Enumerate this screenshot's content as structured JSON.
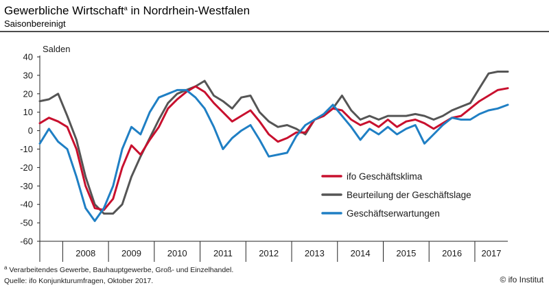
{
  "header": {
    "title": "Gewerbliche Wirtschaft",
    "title_mark": "a",
    "title_rest": " in Nordrhein-Westfalen",
    "subtitle": "Saisonbereinigt"
  },
  "chart_data": {
    "type": "line",
    "ylabel": "Salden",
    "ylim": [
      -60,
      40
    ],
    "ytick_values": [
      40,
      30,
      20,
      10,
      0,
      -10,
      -20,
      -30,
      -40,
      -50,
      -60
    ],
    "xlim": [
      2007.5,
      2017.72
    ],
    "year_labels": [
      "2008",
      "2009",
      "2010",
      "2011",
      "2012",
      "2013",
      "2014",
      "2015",
      "2016",
      "2017"
    ],
    "grid": false,
    "legend_position": "lower-right",
    "series": [
      {
        "name": "ifo Geschäftsklima",
        "color": "#c8102e",
        "x": [
          2007.5,
          2007.7,
          2007.9,
          2008.1,
          2008.3,
          2008.5,
          2008.7,
          2008.9,
          2009.1,
          2009.3,
          2009.5,
          2009.7,
          2009.9,
          2010.1,
          2010.3,
          2010.5,
          2010.7,
          2010.9,
          2011.1,
          2011.3,
          2011.5,
          2011.7,
          2011.9,
          2012.1,
          2012.3,
          2012.5,
          2012.7,
          2012.9,
          2013.1,
          2013.3,
          2013.5,
          2013.7,
          2013.9,
          2014.1,
          2014.3,
          2014.5,
          2014.7,
          2014.9,
          2015.1,
          2015.3,
          2015.5,
          2015.7,
          2015.9,
          2016.1,
          2016.3,
          2016.5,
          2016.7,
          2016.9,
          2017.1,
          2017.3,
          2017.5,
          2017.72
        ],
        "values": [
          4,
          7,
          5,
          2,
          -10,
          -30,
          -42,
          -43,
          -37,
          -20,
          -8,
          -13,
          -5,
          2,
          12,
          17,
          21,
          24,
          21,
          15,
          10,
          5,
          8,
          11,
          5,
          -2,
          -6,
          -4,
          -1,
          -1,
          6,
          8,
          12,
          11,
          6,
          3,
          5,
          2,
          6,
          2,
          5,
          6,
          4,
          1,
          4,
          7,
          8,
          12,
          16,
          19,
          22,
          23
        ]
      },
      {
        "name": "Beurteilung der Geschäftslage",
        "color": "#555555",
        "x": [
          2007.5,
          2007.7,
          2007.9,
          2008.1,
          2008.3,
          2008.5,
          2008.7,
          2008.9,
          2009.1,
          2009.3,
          2009.5,
          2009.7,
          2009.9,
          2010.1,
          2010.3,
          2010.5,
          2010.7,
          2010.9,
          2011.1,
          2011.3,
          2011.5,
          2011.7,
          2011.9,
          2012.1,
          2012.3,
          2012.5,
          2012.7,
          2012.9,
          2013.1,
          2013.3,
          2013.5,
          2013.7,
          2013.9,
          2014.1,
          2014.3,
          2014.5,
          2014.7,
          2014.9,
          2015.1,
          2015.3,
          2015.5,
          2015.7,
          2015.9,
          2016.1,
          2016.3,
          2016.5,
          2016.7,
          2016.9,
          2017.1,
          2017.3,
          2017.5,
          2017.72
        ],
        "values": [
          16,
          17,
          20,
          8,
          -5,
          -25,
          -40,
          -45,
          -45,
          -40,
          -25,
          -14,
          -4,
          6,
          15,
          20,
          22,
          24,
          27,
          19,
          16,
          12,
          18,
          19,
          10,
          5,
          2,
          3,
          1,
          -2,
          6,
          8,
          12,
          19,
          11,
          6,
          8,
          6,
          8,
          8,
          8,
          9,
          8,
          6,
          8,
          11,
          13,
          15,
          23,
          31,
          32,
          32
        ]
      },
      {
        "name": "Geschäftserwartungen",
        "color": "#1f7fc4",
        "x": [
          2007.5,
          2007.7,
          2007.9,
          2008.1,
          2008.3,
          2008.5,
          2008.7,
          2008.9,
          2009.1,
          2009.3,
          2009.5,
          2009.7,
          2009.9,
          2010.1,
          2010.3,
          2010.5,
          2010.7,
          2010.9,
          2011.1,
          2011.3,
          2011.5,
          2011.7,
          2011.9,
          2012.1,
          2012.3,
          2012.5,
          2012.7,
          2012.9,
          2013.1,
          2013.3,
          2013.5,
          2013.7,
          2013.9,
          2014.1,
          2014.3,
          2014.5,
          2014.7,
          2014.9,
          2015.1,
          2015.3,
          2015.5,
          2015.7,
          2015.9,
          2016.1,
          2016.3,
          2016.5,
          2016.7,
          2016.9,
          2017.1,
          2017.3,
          2017.5,
          2017.72
        ],
        "values": [
          -7,
          1,
          -6,
          -10,
          -25,
          -42,
          -49,
          -42,
          -30,
          -10,
          2,
          -2,
          10,
          18,
          20,
          22,
          22,
          18,
          12,
          2,
          -10,
          -4,
          0,
          3,
          -5,
          -14,
          -13,
          -12,
          -3,
          3,
          6,
          9,
          14,
          8,
          2,
          -5,
          1,
          -2,
          2,
          -2,
          1,
          3,
          -7,
          -2,
          3,
          7,
          6,
          6,
          9,
          11,
          12,
          14
        ]
      }
    ]
  },
  "footnote": {
    "mark": "a",
    "text": " Verarbeitendes Gewerbe, Bauhauptgewerbe, Groß- und Einzelhandel.",
    "source": "Quelle: ifo Konjunkturumfragen, Oktober 2017."
  },
  "credit": "© ifo Institut"
}
